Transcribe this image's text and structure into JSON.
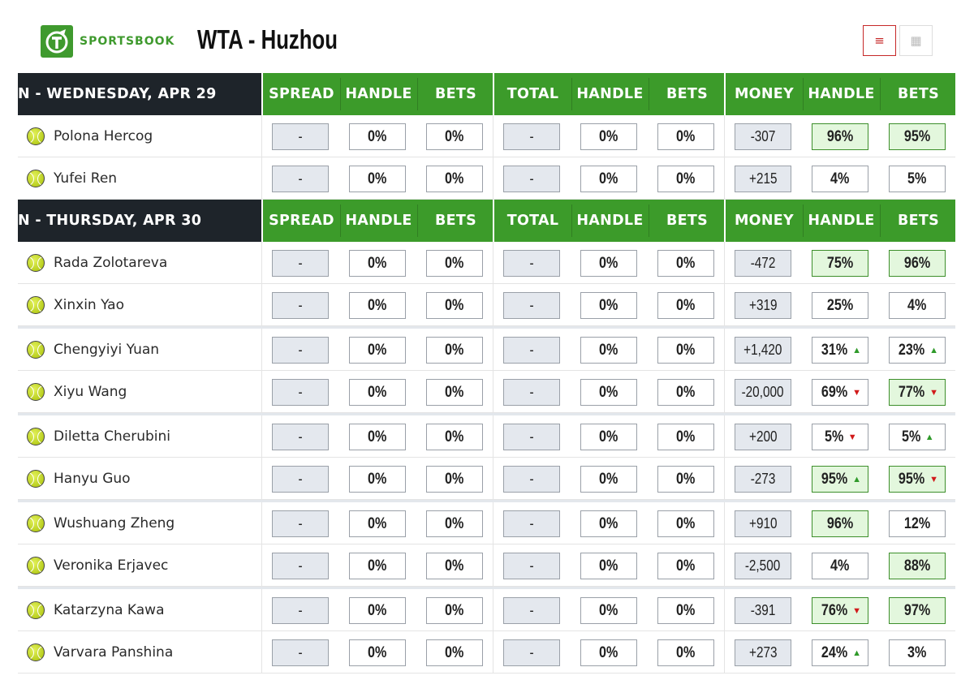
{
  "header": {
    "logo_text": "SPORTSBOOK",
    "title": "WTA - Huzhou",
    "list_view_icon": "≡",
    "grid_view_icon": "▦"
  },
  "columns": [
    "SPREAD",
    "HANDLE",
    "BETS",
    "TOTAL",
    "HANDLE",
    "BETS",
    "MONEY",
    "HANDLE",
    "BETS"
  ],
  "colors": {
    "accent_green": "#3c9b2a",
    "dark_header": "#1e242a",
    "highlight_green_bg": "#e3f7dd",
    "up_arrow": "#2f9a2a",
    "down_arrow": "#d11a1a"
  },
  "days": [
    {
      "label": "N - WEDNESDAY, APR 29",
      "matches": [
        [
          {
            "name": "Polona Hercog",
            "spread": "-",
            "spread_handle": "0%",
            "spread_bets": "0%",
            "total": "-",
            "total_handle": "0%",
            "total_bets": "0%",
            "money": "-307",
            "money_handle": "96%",
            "money_handle_hl": true,
            "money_handle_arrow": "",
            "money_bets": "95%",
            "money_bets_hl": true,
            "money_bets_arrow": ""
          },
          {
            "name": "Yufei Ren",
            "spread": "-",
            "spread_handle": "0%",
            "spread_bets": "0%",
            "total": "-",
            "total_handle": "0%",
            "total_bets": "0%",
            "money": "+215",
            "money_handle": "4%",
            "money_handle_hl": false,
            "money_handle_arrow": "",
            "money_bets": "5%",
            "money_bets_hl": false,
            "money_bets_arrow": ""
          }
        ]
      ]
    },
    {
      "label": "N - THURSDAY, APR 30",
      "matches": [
        [
          {
            "name": "Rada Zolotareva",
            "spread": "-",
            "spread_handle": "0%",
            "spread_bets": "0%",
            "total": "-",
            "total_handle": "0%",
            "total_bets": "0%",
            "money": "-472",
            "money_handle": "75%",
            "money_handle_hl": true,
            "money_handle_arrow": "",
            "money_bets": "96%",
            "money_bets_hl": true,
            "money_bets_arrow": ""
          },
          {
            "name": "Xinxin Yao",
            "spread": "-",
            "spread_handle": "0%",
            "spread_bets": "0%",
            "total": "-",
            "total_handle": "0%",
            "total_bets": "0%",
            "money": "+319",
            "money_handle": "25%",
            "money_handle_hl": false,
            "money_handle_arrow": "",
            "money_bets": "4%",
            "money_bets_hl": false,
            "money_bets_arrow": ""
          }
        ],
        [
          {
            "name": "Chengyiyi Yuan",
            "spread": "-",
            "spread_handle": "0%",
            "spread_bets": "0%",
            "total": "-",
            "total_handle": "0%",
            "total_bets": "0%",
            "money": "+1,420",
            "money_handle": "31%",
            "money_handle_hl": false,
            "money_handle_arrow": "up",
            "money_bets": "23%",
            "money_bets_hl": false,
            "money_bets_arrow": "up"
          },
          {
            "name": "Xiyu Wang",
            "spread": "-",
            "spread_handle": "0%",
            "spread_bets": "0%",
            "total": "-",
            "total_handle": "0%",
            "total_bets": "0%",
            "money": "-20,000",
            "money_handle": "69%",
            "money_handle_hl": false,
            "money_handle_arrow": "down",
            "money_bets": "77%",
            "money_bets_hl": true,
            "money_bets_arrow": "down"
          }
        ],
        [
          {
            "name": "Diletta Cherubini",
            "spread": "-",
            "spread_handle": "0%",
            "spread_bets": "0%",
            "total": "-",
            "total_handle": "0%",
            "total_bets": "0%",
            "money": "+200",
            "money_handle": "5%",
            "money_handle_hl": false,
            "money_handle_arrow": "down",
            "money_bets": "5%",
            "money_bets_hl": false,
            "money_bets_arrow": "up"
          },
          {
            "name": "Hanyu Guo",
            "spread": "-",
            "spread_handle": "0%",
            "spread_bets": "0%",
            "total": "-",
            "total_handle": "0%",
            "total_bets": "0%",
            "money": "-273",
            "money_handle": "95%",
            "money_handle_hl": true,
            "money_handle_arrow": "up",
            "money_bets": "95%",
            "money_bets_hl": true,
            "money_bets_arrow": "down"
          }
        ],
        [
          {
            "name": "Wushuang Zheng",
            "spread": "-",
            "spread_handle": "0%",
            "spread_bets": "0%",
            "total": "-",
            "total_handle": "0%",
            "total_bets": "0%",
            "money": "+910",
            "money_handle": "96%",
            "money_handle_hl": true,
            "money_handle_arrow": "",
            "money_bets": "12%",
            "money_bets_hl": false,
            "money_bets_arrow": ""
          },
          {
            "name": "Veronika Erjavec",
            "spread": "-",
            "spread_handle": "0%",
            "spread_bets": "0%",
            "total": "-",
            "total_handle": "0%",
            "total_bets": "0%",
            "money": "-2,500",
            "money_handle": "4%",
            "money_handle_hl": false,
            "money_handle_arrow": "",
            "money_bets": "88%",
            "money_bets_hl": true,
            "money_bets_arrow": ""
          }
        ],
        [
          {
            "name": "Katarzyna Kawa",
            "spread": "-",
            "spread_handle": "0%",
            "spread_bets": "0%",
            "total": "-",
            "total_handle": "0%",
            "total_bets": "0%",
            "money": "-391",
            "money_handle": "76%",
            "money_handle_hl": true,
            "money_handle_arrow": "down",
            "money_bets": "97%",
            "money_bets_hl": true,
            "money_bets_arrow": ""
          },
          {
            "name": "Varvara Panshina",
            "spread": "-",
            "spread_handle": "0%",
            "spread_bets": "0%",
            "total": "-",
            "total_handle": "0%",
            "total_bets": "0%",
            "money": "+273",
            "money_handle": "24%",
            "money_handle_hl": false,
            "money_handle_arrow": "up",
            "money_bets": "3%",
            "money_bets_hl": false,
            "money_bets_arrow": ""
          }
        ]
      ]
    }
  ]
}
